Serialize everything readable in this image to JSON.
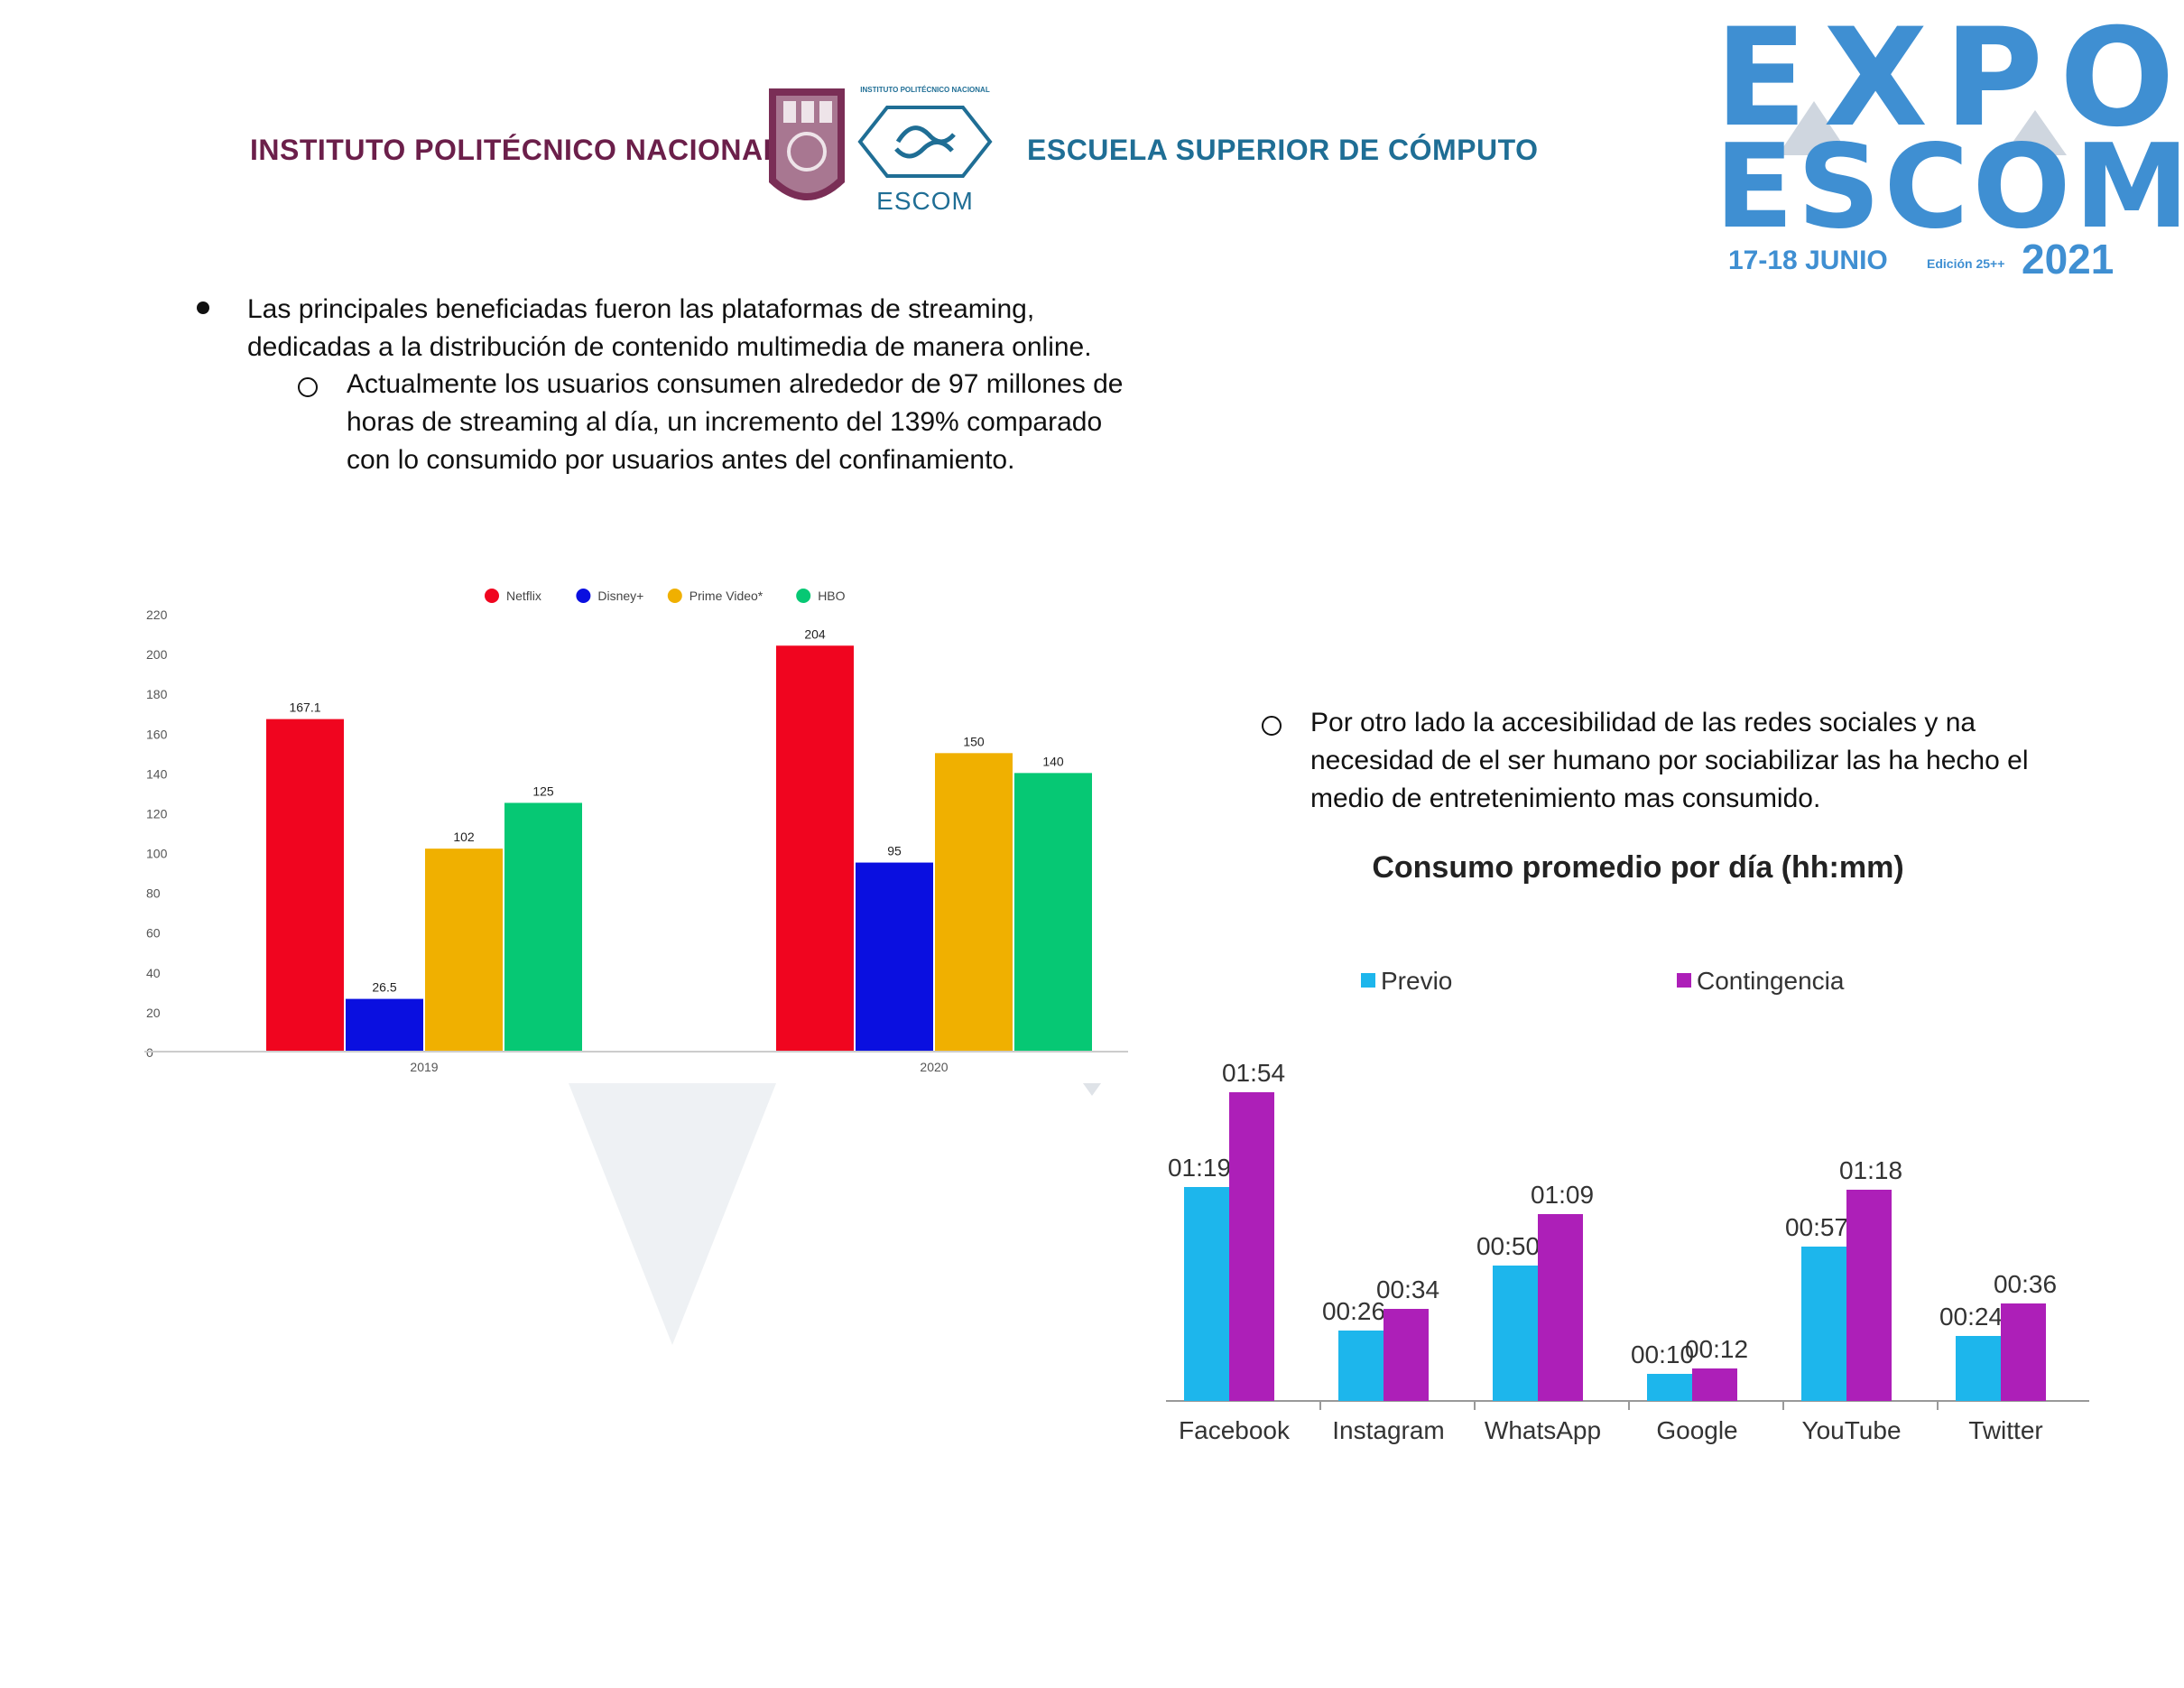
{
  "header": {
    "left_title": "INSTITUTO POLITÉCNICO NACIONAL",
    "right_title": "ESCUELA SUPERIOR DE CÓMPUTO",
    "escom_small": "INSTITUTO POLITÉCNICO NACIONAL",
    "escom_label": "ESCOM",
    "expo_line1": "EXPO",
    "expo_line2": "ESCOM",
    "expo_date": "17-18 JUNIO",
    "expo_edition": "Edición 25++",
    "expo_year": "2021"
  },
  "bullets": {
    "b1": "Las principales beneficiadas fueron las plataformas de streaming, dedicadas a la distribución de contenido multimedia de manera online.",
    "b2": "Actualmente los usuarios consumen alrededor de 97 millones de horas de streaming al día, un incremento del 139% comparado con lo consumido por usuarios antes del confinamiento.",
    "b3": "Por otro lado la accesibilidad de las redes sociales y na necesidad de el ser humano por sociabilizar las ha hecho el medio de entretenimiento mas consumido."
  },
  "colors": {
    "netflix": "#f0051f",
    "disney": "#0a0fe0",
    "prime": "#f0b000",
    "hbo": "#06c874",
    "previo": "#1db6ec",
    "contingencia": "#ad1fb8",
    "brand_maroon": "#6b1f4a",
    "brand_blue": "#1f6e95",
    "expo_blue": "#3f8fd2"
  },
  "chart_data": [
    {
      "type": "bar",
      "title": "",
      "categories": [
        "2019",
        "2020"
      ],
      "series": [
        {
          "name": "Netflix",
          "values": [
            167.1,
            204
          ],
          "labels": [
            "167.1",
            "204"
          ]
        },
        {
          "name": "Disney+",
          "values": [
            26.5,
            95
          ],
          "labels": [
            "26.5",
            "95"
          ]
        },
        {
          "name": "Prime Video*",
          "values": [
            102,
            150
          ],
          "labels": [
            "102",
            "150"
          ]
        },
        {
          "name": "HBO",
          "values": [
            125,
            140
          ],
          "labels": [
            "125",
            "140"
          ]
        }
      ],
      "ylim": [
        0,
        220
      ],
      "yticks": [
        "0",
        "20",
        "40",
        "60",
        "80",
        "100",
        "120",
        "140",
        "160",
        "180",
        "200",
        "220"
      ],
      "legend": "top"
    },
    {
      "type": "bar",
      "title": "Consumo promedio por día (hh:mm)",
      "categories": [
        "Facebook",
        "Instagram",
        "WhatsApp",
        "Google",
        "YouTube",
        "Twitter"
      ],
      "series": [
        {
          "name": "Previo",
          "values": [
            79,
            26,
            50,
            10,
            57,
            24
          ],
          "labels": [
            "01:19",
            "00:26",
            "00:50",
            "00:10",
            "00:57",
            "00:24"
          ]
        },
        {
          "name": "Contingencia",
          "values": [
            114,
            34,
            69,
            12,
            78,
            36
          ],
          "labels": [
            "01:54",
            "00:34",
            "01:09",
            "00:12",
            "01:18",
            "00:36"
          ]
        }
      ],
      "unit": "minutes",
      "legend": "top"
    }
  ]
}
